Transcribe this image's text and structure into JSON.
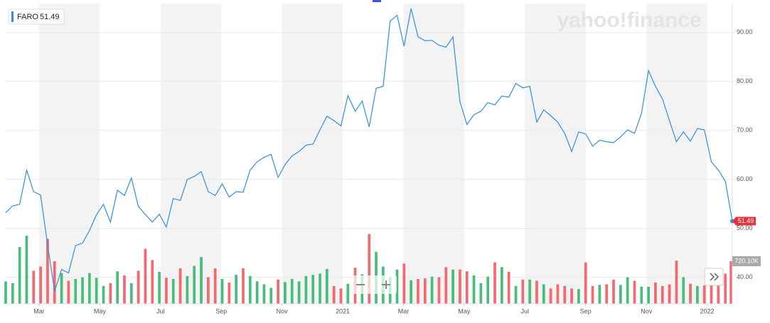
{
  "chart_data": {
    "type": "line",
    "symbol": "FARO",
    "last_price": 51.49,
    "watermark": "yahoo!finance",
    "x": [
      0.9,
      1.13,
      1.36,
      1.59,
      1.82,
      2.05,
      2.28,
      2.51,
      2.74,
      2.97,
      3.2,
      3.43,
      3.66,
      3.89,
      4.12,
      4.35,
      4.58,
      4.81,
      5.04,
      5.27,
      5.5,
      5.73,
      5.96,
      6.19,
      6.42,
      6.65,
      6.88,
      7.11,
      7.34,
      7.57,
      7.8,
      8.03,
      8.26,
      8.49,
      8.72,
      8.95,
      9.18,
      9.41,
      9.64,
      9.87,
      10.1,
      10.33,
      10.56,
      10.79,
      11.02,
      11.25,
      11.48,
      11.71,
      11.94,
      12.17,
      12.41,
      12.64,
      12.87,
      13.1,
      13.33,
      13.56,
      13.79,
      14.02,
      14.25,
      14.48,
      14.71,
      14.94,
      15.17,
      15.4,
      15.63,
      15.86,
      16.09,
      16.32,
      16.55,
      16.78,
      17.01,
      17.24,
      17.47,
      17.7,
      17.93,
      18.16,
      18.39,
      18.62,
      18.85,
      19.08,
      19.31,
      19.54,
      19.77,
      20.0,
      20.23,
      20.46,
      20.69,
      20.92,
      21.15,
      21.38,
      21.61,
      21.84,
      22.07,
      22.3,
      22.53,
      22.76,
      22.99,
      23.22,
      23.45,
      23.68,
      23.91,
      24.14,
      24.37,
      24.6,
      24.83
    ],
    "xlim": [
      0.9,
      24.83
    ],
    "xticks": [
      {
        "value": 2,
        "label": "Mar"
      },
      {
        "value": 4,
        "label": "May"
      },
      {
        "value": 6,
        "label": "Jul"
      },
      {
        "value": 8,
        "label": "Sep"
      },
      {
        "value": 10,
        "label": "Nov"
      },
      {
        "value": 12,
        "label": "2021"
      },
      {
        "value": 14,
        "label": "Mar"
      },
      {
        "value": 16,
        "label": "May"
      },
      {
        "value": 18,
        "label": "Jul"
      },
      {
        "value": 20,
        "label": "Sep"
      },
      {
        "value": 22,
        "label": "Nov"
      },
      {
        "value": 24,
        "label": "2022"
      }
    ],
    "ylim": [
      34.6,
      95.9
    ],
    "yticks": [
      {
        "value": 40,
        "label": "40.00"
      },
      {
        "value": 50,
        "label": "50.00"
      },
      {
        "value": 60,
        "label": "60.00"
      },
      {
        "value": 70,
        "label": "70.00"
      },
      {
        "value": 80,
        "label": "80.00"
      },
      {
        "value": 90,
        "label": "90.00"
      }
    ],
    "grid": true,
    "volume_lim": [
      0,
      1500000
    ],
    "volume_marker": {
      "value": 720100,
      "label": "720.10K"
    },
    "series": [
      {
        "name": "FARO",
        "color": "#2f8fe0",
        "values": [
          53.2,
          54.6,
          54.9,
          61.9,
          57.5,
          56.8,
          46.7,
          37.2,
          41.6,
          40.9,
          46.5,
          47.0,
          49.6,
          52.8,
          54.9,
          51.3,
          57.8,
          56.7,
          60.3,
          54.5,
          52.8,
          51.3,
          52.9,
          50.3,
          56.1,
          55.7,
          60.0,
          60.6,
          61.6,
          57.5,
          56.7,
          59.1,
          56.4,
          57.5,
          57.4,
          61.9,
          63.6,
          64.5,
          65.1,
          60.4,
          63.0,
          64.8,
          65.7,
          67.0,
          67.2,
          70.1,
          72.9,
          72.0,
          70.9,
          77.1,
          73.9,
          76.0,
          70.7,
          78.6,
          79.0,
          92.3,
          93.5,
          87.2,
          94.9,
          89.1,
          88.3,
          88.4,
          87.4,
          87.0,
          89.1,
          75.9,
          71.2,
          73.2,
          73.9,
          75.7,
          75.2,
          77.0,
          76.8,
          79.6,
          78.7,
          79.0,
          71.7,
          74.2,
          73.0,
          71.7,
          69.4,
          65.7,
          69.7,
          69.3,
          66.8,
          68.0,
          67.7,
          67.5,
          68.7,
          70.1,
          69.4,
          73.5,
          82.2,
          79.0,
          76.4,
          72.0,
          67.7,
          69.7,
          67.8,
          70.4,
          70.1,
          63.6,
          61.9,
          59.6,
          51.49
        ]
      },
      {
        "type": "bar",
        "up_color": "#48bd7b",
        "down_color": "#f26a6f",
        "values": [
          380000,
          350000,
          960000,
          1150000,
          560000,
          630000,
          1100000,
          720000,
          520000,
          390000,
          420000,
          450000,
          520000,
          440000,
          300000,
          350000,
          550000,
          480000,
          350000,
          560000,
          930000,
          740000,
          540000,
          440000,
          420000,
          600000,
          470000,
          640000,
          790000,
          450000,
          600000,
          420000,
          360000,
          490000,
          600000,
          470000,
          380000,
          330000,
          270000,
          410000,
          370000,
          420000,
          380000,
          470000,
          490000,
          510000,
          590000,
          300000,
          260000,
          340000,
          610000,
          500000,
          1180000,
          880000,
          630000,
          450000,
          580000,
          680000,
          400000,
          420000,
          430000,
          460000,
          450000,
          620000,
          580000,
          580000,
          550000,
          480000,
          350000,
          460000,
          700000,
          620000,
          540000,
          300000,
          410000,
          410000,
          390000,
          330000,
          260000,
          330000,
          300000,
          260000,
          250000,
          700000,
          300000,
          320000,
          330000,
          410000,
          320000,
          450000,
          390000,
          290000,
          290000,
          360000,
          300000,
          330000,
          730000,
          450000,
          340000,
          300000,
          310000,
          340000,
          440000,
          510000,
          720100
        ]
      }
    ]
  }
}
